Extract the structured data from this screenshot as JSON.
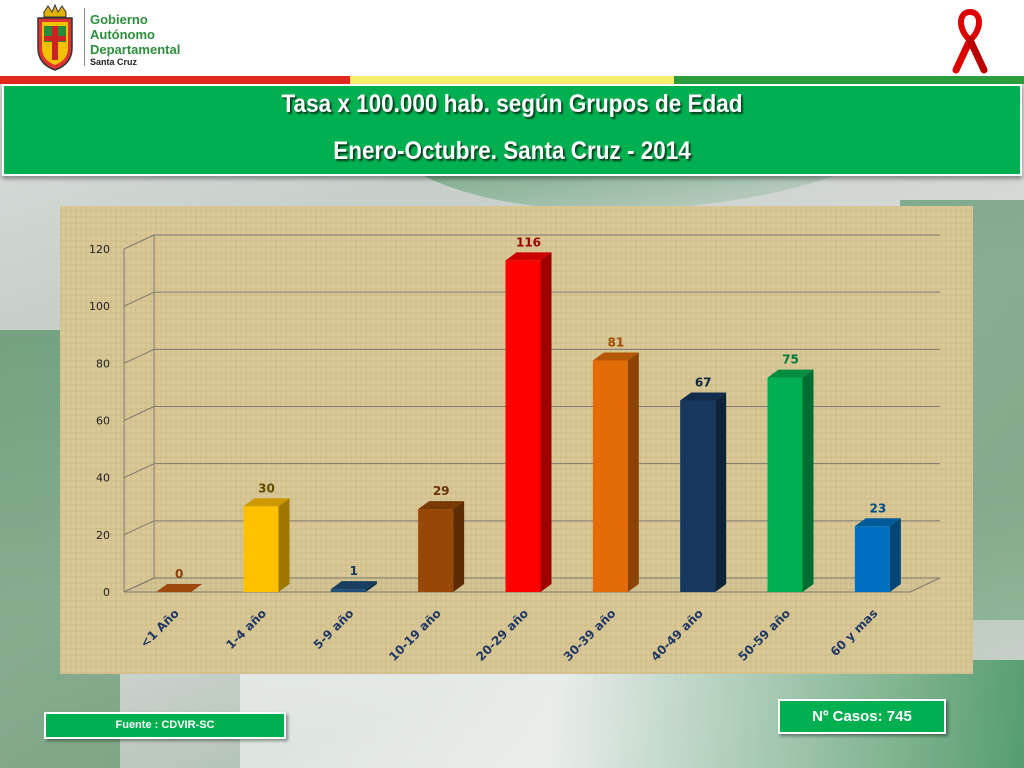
{
  "header": {
    "org_line1": "Gobierno",
    "org_line2": "Autónomo",
    "org_line3": "Departamental",
    "org_line4": "Santa Cruz",
    "logo_icon": "coat-of-arms-icon",
    "ribbon_icon": "awareness-ribbon-icon"
  },
  "flag_colors": [
    "#e2271c",
    "#f7ef6b",
    "#2a9d3c"
  ],
  "colors": {
    "title_bg": "#00b050",
    "panel_bg": "#d9c796"
  },
  "chart_data": {
    "type": "bar",
    "title": "Tasa x 100.000 hab. según Grupos de Edad",
    "subtitle": "Enero-Octubre. Santa Cruz  - 2014",
    "categories": [
      "<1 Año",
      "1-4 año",
      "5-9 año",
      "10-19 año",
      "20-29 año",
      "30-39 año",
      "40-49 año",
      "50-59 año",
      "60 y mas"
    ],
    "values": [
      0,
      30,
      1,
      29,
      116,
      81,
      67,
      75,
      23
    ],
    "bar_colors": [
      "#c55a11",
      "#ffc000",
      "#1f4e79",
      "#974706",
      "#ff0000",
      "#e36c09",
      "#17375e",
      "#00b050",
      "#0070c0"
    ],
    "ylim": [
      0,
      120
    ],
    "yticks": [
      0,
      20,
      40,
      60,
      80,
      100,
      120
    ],
    "data_labels": true,
    "grid": true,
    "style": "3d-column"
  },
  "footer": {
    "source": "Fuente : CDVIR-SC",
    "cases": "Nº Casos: 745"
  }
}
